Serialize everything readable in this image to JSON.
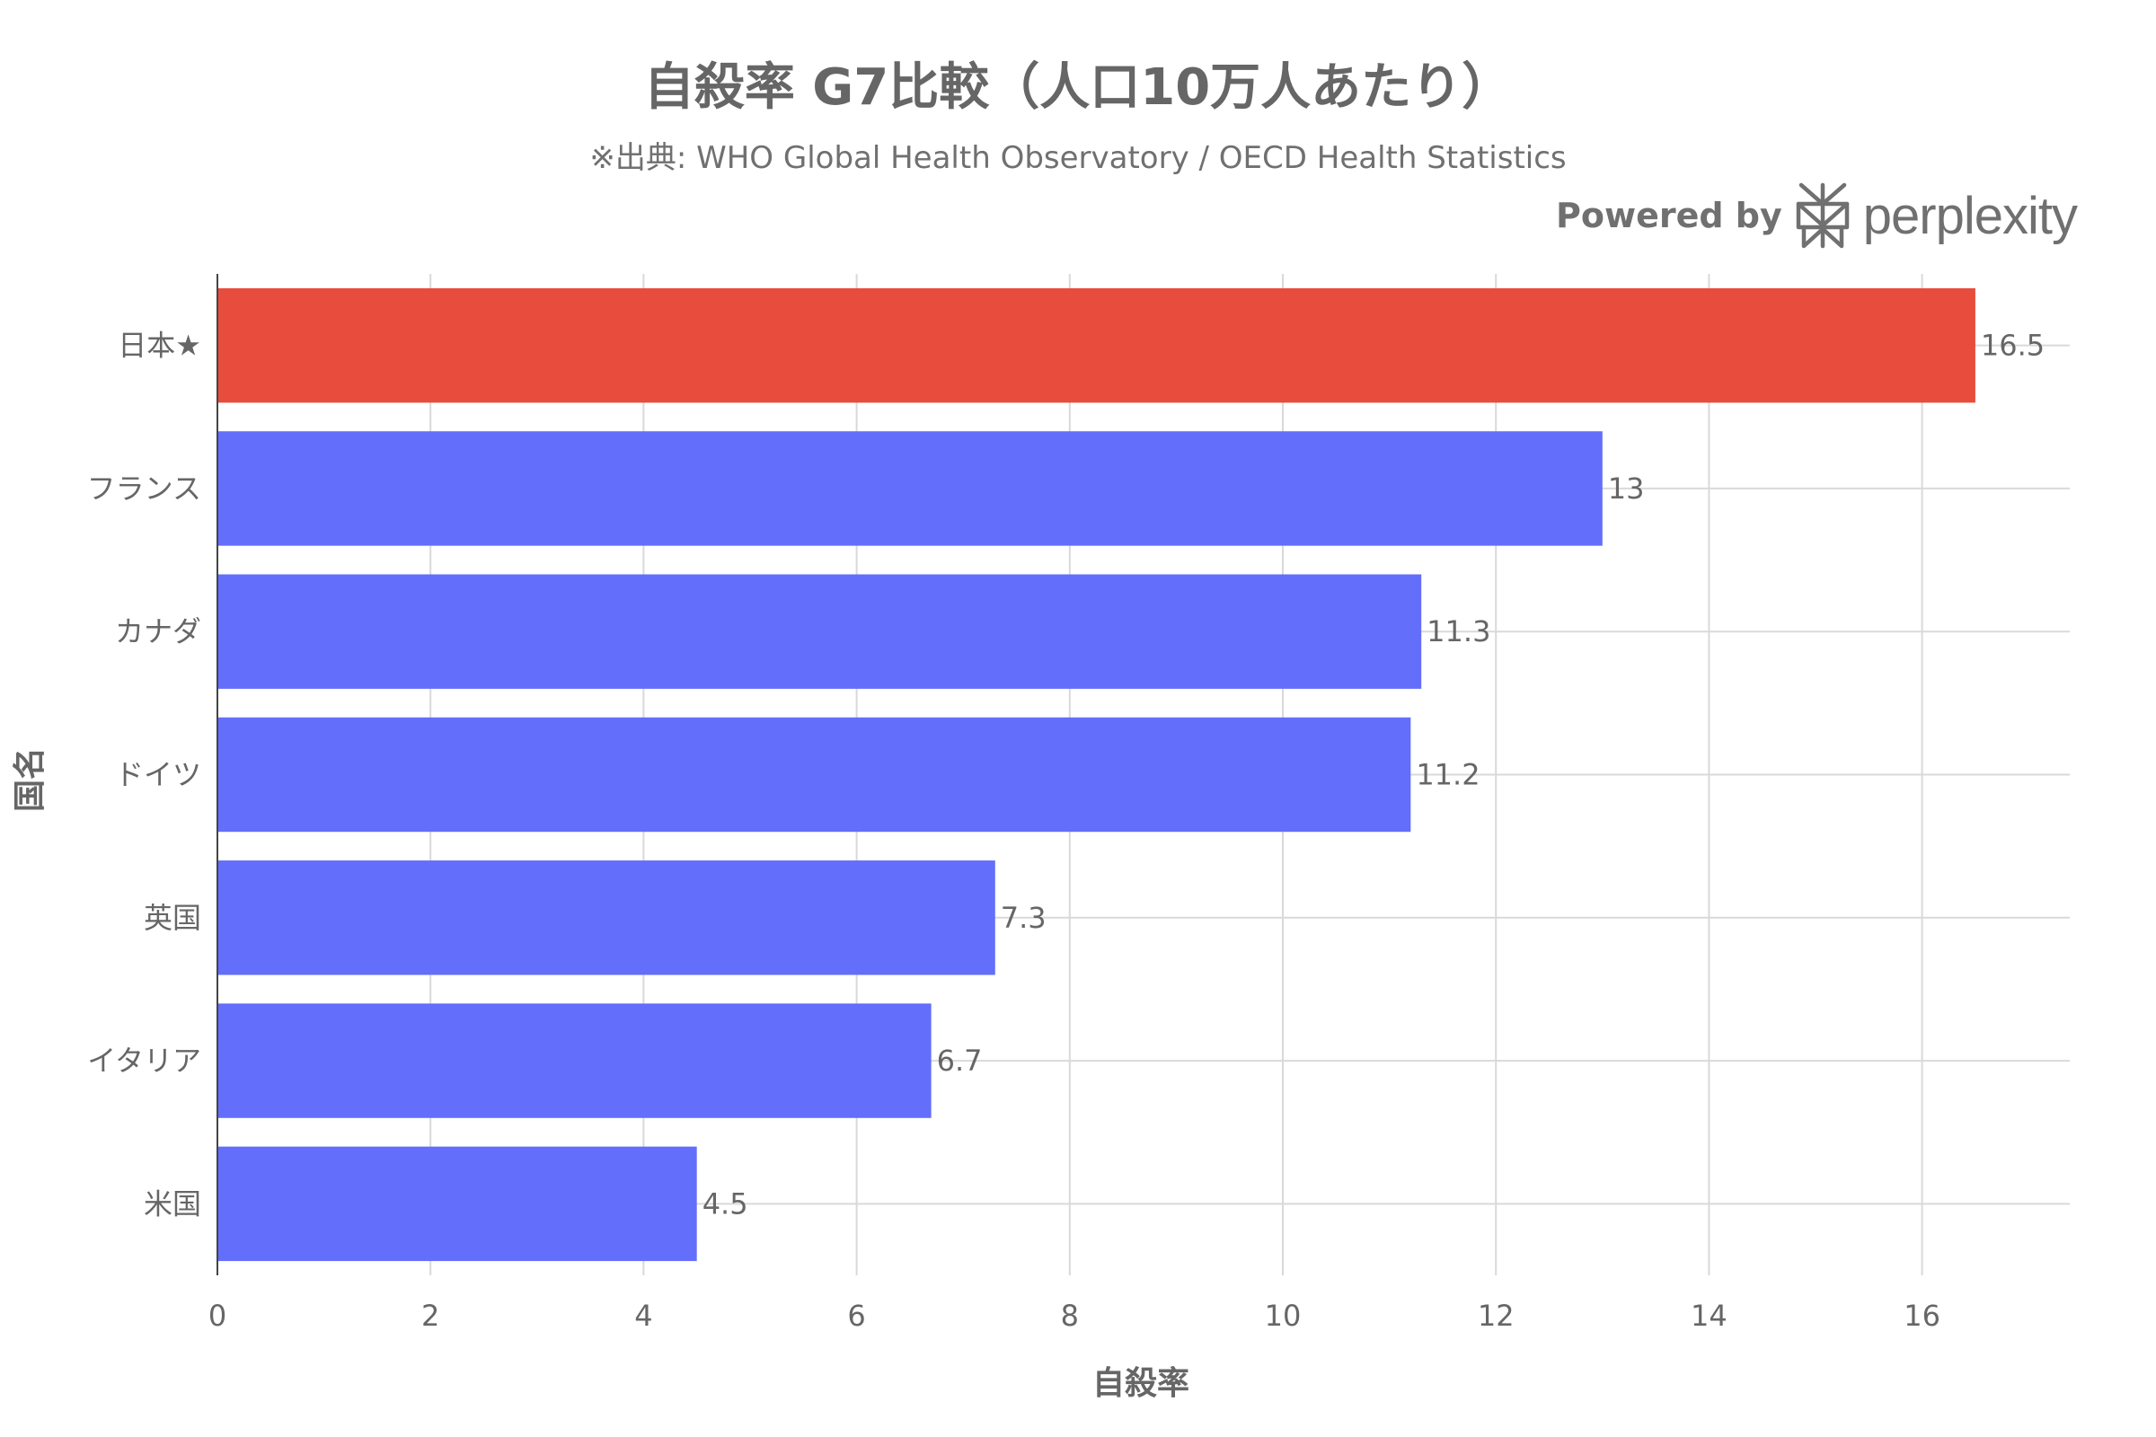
{
  "title": "自殺率 G7比較（人口10万人あたり）",
  "subtitle": "※出典: WHO Global Health Observatory / OECD Health Statistics",
  "brand": {
    "powered_by": "Powered by",
    "name": "perplexity",
    "logo_icon": "perplexity-logo-icon"
  },
  "colors": {
    "highlight": "#e74c3c",
    "bar": "#636efa",
    "grid": "#d9d9d9",
    "axis": "#444444",
    "text": "#666666"
  },
  "chart_data": {
    "type": "bar",
    "orientation": "horizontal",
    "categories": [
      "日本★",
      "フランス",
      "カナダ",
      "ドイツ",
      "英国",
      "イタリア",
      "米国"
    ],
    "values": [
      16.5,
      13,
      11.3,
      11.2,
      7.3,
      6.7,
      4.5
    ],
    "value_labels": [
      "16.5",
      "13",
      "11.3",
      "11.2",
      "7.3",
      "6.7",
      "4.5"
    ],
    "highlight_index": 0,
    "xlabel": "自殺率",
    "ylabel": "国名",
    "xlim": [
      0,
      17.4
    ],
    "xticks": [
      0,
      2,
      4,
      6,
      8,
      10,
      12,
      14,
      16
    ],
    "grid": true
  }
}
